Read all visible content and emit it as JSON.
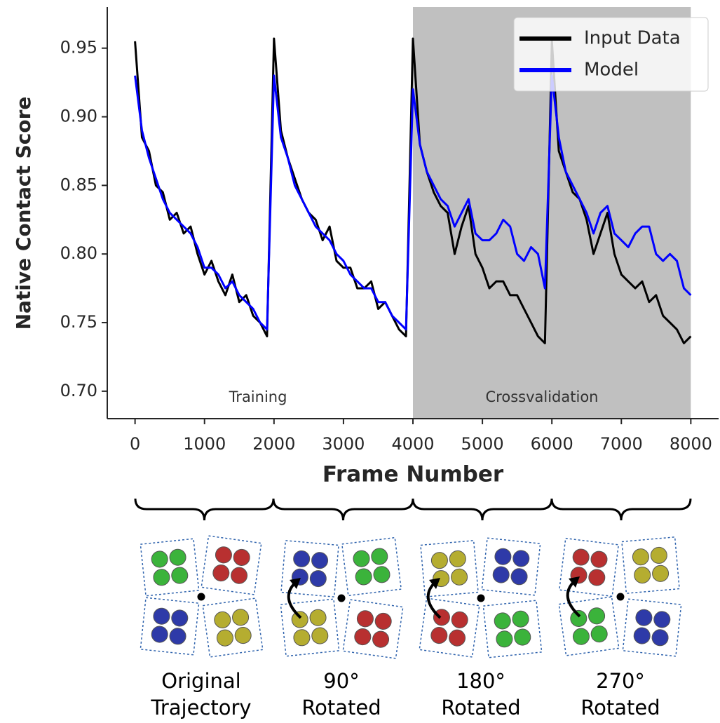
{
  "chart_data": {
    "type": "line",
    "x_label": "Frame Number",
    "y_label": "Native Contact Score",
    "x": [
      0,
      100,
      200,
      300,
      400,
      500,
      600,
      700,
      800,
      900,
      1000,
      1100,
      1200,
      1300,
      1400,
      1500,
      1600,
      1700,
      1800,
      1900,
      2000,
      2100,
      2200,
      2300,
      2400,
      2500,
      2600,
      2700,
      2800,
      2900,
      3000,
      3100,
      3200,
      3300,
      3400,
      3500,
      3600,
      3700,
      3800,
      3900,
      4000,
      4100,
      4200,
      4300,
      4400,
      4500,
      4600,
      4700,
      4800,
      4900,
      5000,
      5100,
      5200,
      5300,
      5400,
      5500,
      5600,
      5700,
      5800,
      5900,
      6000,
      6100,
      6200,
      6300,
      6400,
      6500,
      6600,
      6700,
      6800,
      6900,
      7000,
      7100,
      7200,
      7300,
      7400,
      7500,
      7600,
      7700,
      7800,
      7900,
      8000
    ],
    "series": [
      {
        "name": "Input Data",
        "color": "#000000",
        "values": [
          0.955,
          0.885,
          0.875,
          0.85,
          0.845,
          0.825,
          0.83,
          0.815,
          0.82,
          0.8,
          0.785,
          0.795,
          0.78,
          0.77,
          0.785,
          0.765,
          0.77,
          0.755,
          0.75,
          0.74,
          0.957,
          0.89,
          0.87,
          0.855,
          0.84,
          0.83,
          0.825,
          0.81,
          0.82,
          0.795,
          0.79,
          0.79,
          0.775,
          0.775,
          0.78,
          0.76,
          0.765,
          0.755,
          0.745,
          0.74,
          0.957,
          0.88,
          0.86,
          0.845,
          0.835,
          0.83,
          0.8,
          0.82,
          0.835,
          0.8,
          0.79,
          0.775,
          0.78,
          0.78,
          0.77,
          0.77,
          0.76,
          0.75,
          0.74,
          0.735,
          0.955,
          0.875,
          0.86,
          0.845,
          0.84,
          0.825,
          0.8,
          0.815,
          0.83,
          0.8,
          0.785,
          0.78,
          0.775,
          0.78,
          0.765,
          0.77,
          0.755,
          0.75,
          0.745,
          0.735,
          0.74
        ]
      },
      {
        "name": "Model",
        "color": "#0000ff",
        "values": [
          0.93,
          0.89,
          0.87,
          0.855,
          0.84,
          0.83,
          0.825,
          0.82,
          0.815,
          0.805,
          0.79,
          0.79,
          0.785,
          0.775,
          0.78,
          0.77,
          0.765,
          0.76,
          0.75,
          0.745,
          0.93,
          0.885,
          0.87,
          0.85,
          0.84,
          0.83,
          0.82,
          0.815,
          0.81,
          0.8,
          0.795,
          0.785,
          0.78,
          0.775,
          0.775,
          0.765,
          0.765,
          0.755,
          0.75,
          0.745,
          0.92,
          0.88,
          0.86,
          0.85,
          0.84,
          0.835,
          0.82,
          0.83,
          0.84,
          0.815,
          0.81,
          0.81,
          0.815,
          0.825,
          0.82,
          0.8,
          0.795,
          0.805,
          0.8,
          0.775,
          0.93,
          0.885,
          0.86,
          0.85,
          0.84,
          0.83,
          0.815,
          0.83,
          0.835,
          0.815,
          0.81,
          0.805,
          0.815,
          0.82,
          0.82,
          0.8,
          0.795,
          0.8,
          0.795,
          0.775,
          0.77
        ]
      }
    ],
    "xlim": [
      -400,
      8400
    ],
    "ylim": [
      0.68,
      0.98
    ],
    "xticks": [
      0,
      1000,
      2000,
      3000,
      4000,
      5000,
      6000,
      7000,
      8000
    ],
    "yticks": [
      {
        "value": 0.7,
        "label": "0.70"
      },
      0.75,
      {
        "value": 0.8,
        "label": "0.80"
      },
      0.85,
      {
        "value": 0.9,
        "label": "0.90"
      },
      0.95
    ],
    "shaded_region": [
      4000,
      8000
    ],
    "shade_color": "#c0c0c0",
    "annotations": [
      "Training",
      "Crossvalidation"
    ],
    "legend": "upper right"
  },
  "diagram": {
    "panels": [
      {
        "label": [
          "Original",
          "Trajectory"
        ]
      },
      {
        "label": [
          "90°",
          "Rotated"
        ]
      },
      {
        "label": [
          "180°",
          "Rotated"
        ]
      },
      {
        "label": [
          "270°",
          "Rotated"
        ]
      }
    ]
  }
}
